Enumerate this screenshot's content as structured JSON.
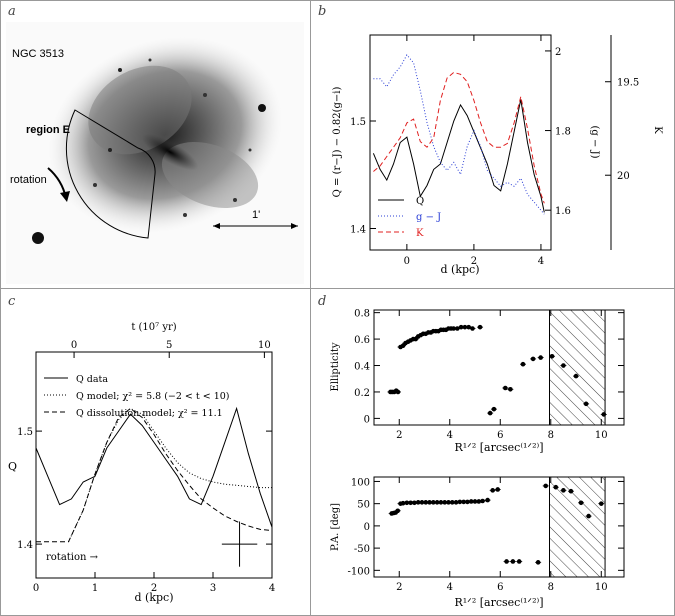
{
  "figure": {
    "panel_letters": [
      "a",
      "b",
      "c",
      "d"
    ],
    "colors": {
      "frame": "#888888",
      "axis": "#000000",
      "q": "#000000",
      "gj": "#2b3fd6",
      "k": "#e02020",
      "hatch": "#444444"
    }
  },
  "panel_a": {
    "galaxy_label": "NGC 3513",
    "region_label": "region E",
    "rotation_label": "rotation",
    "scale_label": "1'"
  },
  "chart_data": [
    {
      "id": "b",
      "type": "line",
      "xlabel": "d (kpc)",
      "ylabel_left": "Q = (r−J) − 0.82(g−i)",
      "ylabel_right_inner": "(g − J)",
      "ylabel_right_outer": "K",
      "xlim": [
        -1.1,
        4.3
      ],
      "ylim": [
        1.38,
        1.58
      ],
      "x_ticks": [
        0,
        2,
        4
      ],
      "y_ticks": [
        1.4,
        1.5
      ],
      "inner_right_range": [
        1.5,
        2.04
      ],
      "inner_right_ticks": [
        1.6,
        1.8,
        2
      ],
      "outer_right_range": [
        20.4,
        19.25
      ],
      "outer_right_ticks": [
        19.5,
        20
      ],
      "legend": [
        "Q",
        "g − J",
        "K"
      ],
      "series": [
        {
          "name": "Q",
          "x": [
            -1,
            -0.8,
            -0.6,
            -0.4,
            -0.2,
            0,
            0.2,
            0.4,
            0.6,
            0.8,
            1,
            1.2,
            1.4,
            1.6,
            1.8,
            2,
            2.2,
            2.4,
            2.6,
            2.8,
            3,
            3.2,
            3.4,
            3.6,
            3.8,
            4,
            4.1
          ],
          "values": [
            1.47,
            1.455,
            1.445,
            1.46,
            1.48,
            1.485,
            1.46,
            1.43,
            1.44,
            1.455,
            1.46,
            1.48,
            1.5,
            1.515,
            1.505,
            1.49,
            1.475,
            1.46,
            1.44,
            1.435,
            1.46,
            1.49,
            1.52,
            1.48,
            1.45,
            1.43,
            1.415
          ]
        },
        {
          "name": "g − J",
          "x": [
            -1,
            -0.8,
            -0.6,
            -0.4,
            -0.2,
            0,
            0.2,
            0.4,
            0.6,
            0.8,
            1,
            1.2,
            1.4,
            1.6,
            1.8,
            2,
            2.2,
            2.4,
            2.6,
            2.8,
            3,
            3.2,
            3.4,
            3.6,
            3.8,
            4,
            4.1
          ],
          "values": [
            1.93,
            1.93,
            1.91,
            1.94,
            1.96,
            1.99,
            1.97,
            1.9,
            1.82,
            1.76,
            1.72,
            1.7,
            1.72,
            1.69,
            1.76,
            1.8,
            1.76,
            1.7,
            1.68,
            1.66,
            1.67,
            1.66,
            1.68,
            1.64,
            1.62,
            1.6,
            1.59
          ]
        },
        {
          "name": "K",
          "x": [
            -1,
            -0.8,
            -0.6,
            -0.4,
            -0.2,
            0,
            0.2,
            0.4,
            0.6,
            0.8,
            1,
            1.2,
            1.4,
            1.6,
            1.8,
            2,
            2.2,
            2.4,
            2.6,
            2.8,
            3,
            3.2,
            3.4,
            3.6,
            3.8,
            4,
            4.1
          ],
          "values": [
            19.98,
            19.95,
            19.9,
            19.85,
            19.8,
            19.72,
            19.7,
            19.82,
            19.85,
            19.8,
            19.6,
            19.48,
            19.45,
            19.46,
            19.5,
            19.6,
            19.72,
            19.82,
            19.85,
            19.85,
            19.83,
            19.72,
            19.58,
            19.75,
            19.95,
            20.1,
            20.15
          ]
        }
      ]
    },
    {
      "id": "c",
      "type": "line",
      "xlabel": "d (kpc)",
      "ylabel": "Q",
      "top_label": "t (10⁷ yr)",
      "xlim": [
        0,
        4
      ],
      "ylim": [
        1.37,
        1.57
      ],
      "x_ticks": [
        0,
        1,
        2,
        3,
        4
      ],
      "y_ticks": [
        1.4,
        1.5
      ],
      "top_ticks": [
        0,
        5,
        10
      ],
      "top_axis_range": [
        -2,
        10.4
      ],
      "legend": [
        "Q data",
        "Q model; χ² = 5.8 (−2 < t < 10)",
        "Q dissolution model; χ² = 11.1"
      ],
      "annotation": "rotation →",
      "error_bar": {
        "x": 3.45,
        "y": 1.4,
        "xerr": 0.3,
        "yerr": 0.02
      },
      "series": [
        {
          "name": "Q data",
          "x": [
            0,
            0.2,
            0.4,
            0.6,
            0.8,
            1,
            1.2,
            1.4,
            1.6,
            1.8,
            2,
            2.2,
            2.4,
            2.6,
            2.8,
            3,
            3.2,
            3.4,
            3.6,
            3.8,
            4
          ],
          "values": [
            1.485,
            1.46,
            1.435,
            1.44,
            1.455,
            1.46,
            1.485,
            1.5,
            1.515,
            1.505,
            1.49,
            1.475,
            1.46,
            1.44,
            1.435,
            1.46,
            1.49,
            1.52,
            1.48,
            1.445,
            1.415
          ]
        },
        {
          "name": "Q model",
          "x": [
            0.55,
            0.8,
            1,
            1.2,
            1.4,
            1.6,
            1.8,
            2,
            2.2,
            2.4,
            2.6,
            2.8,
            3,
            3.2,
            3.4,
            3.6,
            3.8,
            4
          ],
          "values": [
            1.402,
            1.43,
            1.462,
            1.49,
            1.51,
            1.52,
            1.515,
            1.5,
            1.485,
            1.472,
            1.463,
            1.458,
            1.455,
            1.453,
            1.452,
            1.451,
            1.45,
            1.45
          ]
        },
        {
          "name": "Q dissolution model",
          "x": [
            0,
            0.55,
            0.8,
            1,
            1.2,
            1.4,
            1.6,
            1.8,
            2,
            2.2,
            2.4,
            2.6,
            2.8,
            3,
            3.2,
            3.4,
            3.6,
            3.8,
            4
          ],
          "values": [
            1.402,
            1.402,
            1.43,
            1.462,
            1.49,
            1.512,
            1.52,
            1.512,
            1.497,
            1.48,
            1.465,
            1.452,
            1.44,
            1.432,
            1.425,
            1.42,
            1.416,
            1.413,
            1.412
          ]
        }
      ]
    },
    {
      "id": "d-top",
      "type": "scatter",
      "ylabel": "Ellipticity",
      "xlabel": "R¹ᐟ² [arcsec⁽¹ᐟ²⁾]",
      "xlim": [
        1,
        10.9
      ],
      "ylim": [
        -0.05,
        0.82
      ],
      "x_ticks": [
        2,
        4,
        6,
        8,
        10
      ],
      "y_ticks": [
        0,
        0.2,
        0.4,
        0.6,
        0.8
      ],
      "hatched_x_range": [
        7.95,
        10.15
      ],
      "x": [
        1.65,
        1.72,
        1.8,
        1.88,
        1.95,
        2.05,
        2.15,
        2.25,
        2.35,
        2.45,
        2.55,
        2.65,
        2.75,
        2.85,
        2.95,
        3.05,
        3.15,
        3.25,
        3.35,
        3.45,
        3.55,
        3.65,
        3.75,
        3.85,
        3.95,
        4.05,
        4.15,
        4.3,
        4.45,
        4.6,
        4.75,
        4.9,
        5.2,
        5.6,
        5.75,
        6.2,
        6.4,
        6.9,
        7.3,
        7.6,
        8.05,
        8.5,
        9.0,
        9.4,
        10.1
      ],
      "values": [
        0.2,
        0.2,
        0.2,
        0.21,
        0.2,
        0.54,
        0.55,
        0.57,
        0.58,
        0.59,
        0.6,
        0.6,
        0.62,
        0.63,
        0.64,
        0.64,
        0.65,
        0.65,
        0.66,
        0.66,
        0.66,
        0.67,
        0.67,
        0.67,
        0.68,
        0.68,
        0.68,
        0.68,
        0.69,
        0.69,
        0.69,
        0.68,
        0.69,
        0.04,
        0.07,
        0.23,
        0.22,
        0.41,
        0.45,
        0.46,
        0.47,
        0.4,
        0.32,
        0.11,
        0.03
      ]
    },
    {
      "id": "d-bottom",
      "type": "scatter",
      "ylabel": "P.A. [deg]",
      "xlabel": "R¹ᐟ² [arcsec⁽¹ᐟ²⁾]",
      "xlim": [
        1,
        10.9
      ],
      "ylim": [
        -115,
        110
      ],
      "x_ticks": [
        2,
        4,
        6,
        8,
        10
      ],
      "y_ticks": [
        -100,
        -50,
        0,
        50,
        100
      ],
      "hatched_x_range": [
        7.95,
        10.15
      ],
      "x": [
        1.7,
        1.78,
        1.86,
        1.94,
        2.05,
        2.15,
        2.3,
        2.45,
        2.6,
        2.75,
        2.9,
        3.05,
        3.2,
        3.35,
        3.5,
        3.65,
        3.8,
        3.95,
        4.1,
        4.25,
        4.4,
        4.55,
        4.7,
        4.85,
        5.0,
        5.15,
        5.3,
        5.5,
        5.7,
        5.9,
        6.25,
        6.5,
        6.75,
        7.5,
        7.8,
        8.2,
        8.5,
        8.8,
        9.2,
        9.5,
        10.0
      ],
      "values": [
        28,
        29,
        30,
        34,
        50,
        51,
        52,
        52,
        52,
        53,
        53,
        53,
        53,
        53,
        53,
        53,
        53,
        53,
        53,
        53,
        54,
        54,
        54,
        55,
        55,
        55,
        56,
        58,
        80,
        82,
        -80,
        -80,
        -80,
        -82,
        90,
        87,
        80,
        78,
        52,
        22,
        50
      ]
    }
  ]
}
